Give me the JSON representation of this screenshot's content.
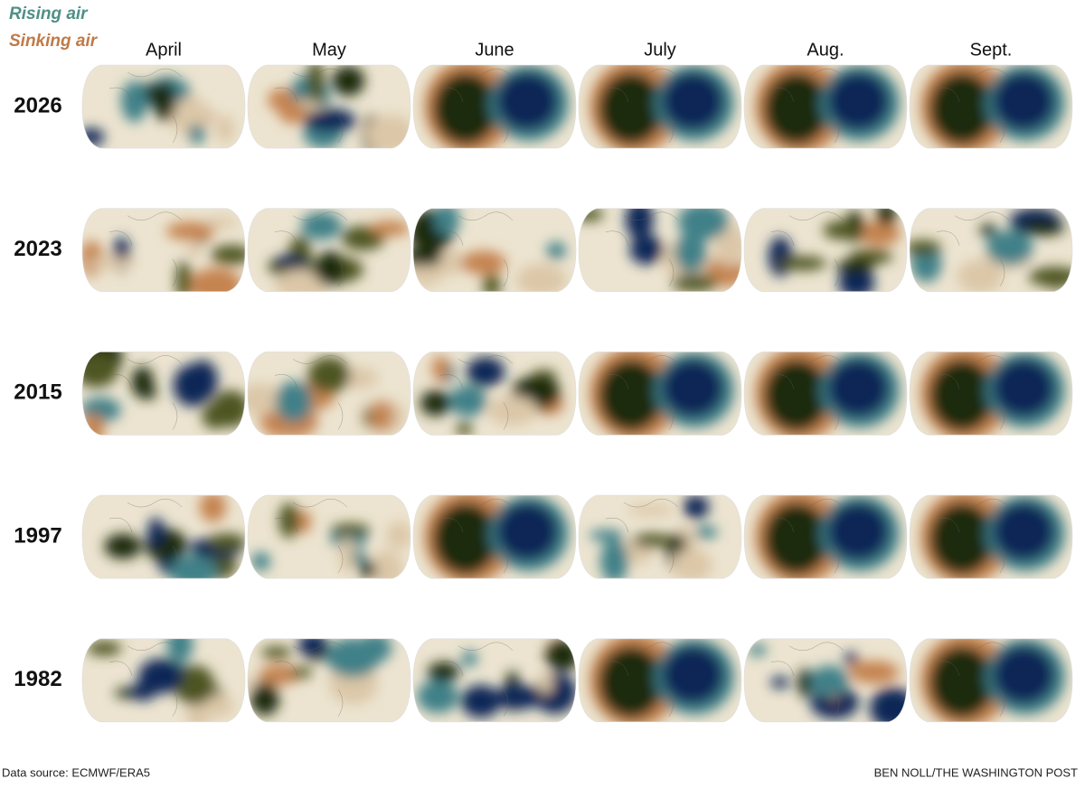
{
  "legend": {
    "rising": "Rising air",
    "sinking": "Sinking air"
  },
  "columns": [
    "April",
    "May",
    "June",
    "July",
    "Aug.",
    "Sept."
  ],
  "rows": [
    "2026",
    "2023",
    "2015",
    "1997",
    "1982"
  ],
  "footer": {
    "source": "Data source: ECMWF/ERA5",
    "credit": "BEN NOLL/THE WASHINGTON POST"
  }
}
